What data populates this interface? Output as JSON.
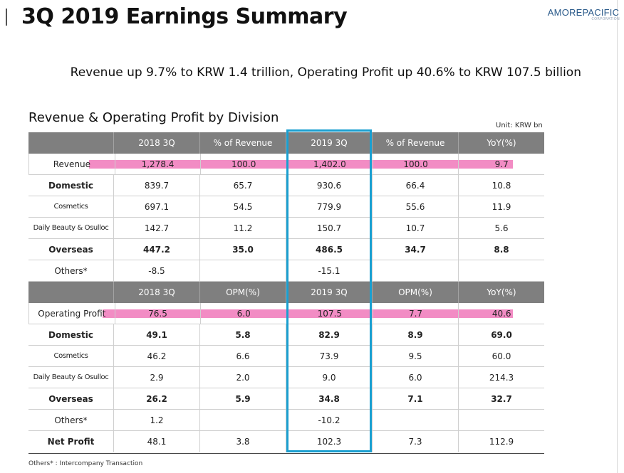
{
  "page": {
    "title": "3Q 2019 Earnings Summary",
    "logo_brand": "AMOREPACIFIC",
    "logo_sub": "CORPORATION",
    "headline": "Revenue up 9.7% to KRW 1.4 trillion, Operating Profit up 40.6% to KRW 107.5 billion",
    "section_title": "Revenue & Operating Profit by Division",
    "unit": "Unit: KRW bn",
    "footnote": "Others* : Intercompany Transaction"
  },
  "revenue_table": {
    "headers": [
      "",
      "2018 3Q",
      "% of Revenue",
      "2019 3Q",
      "% of Revenue",
      "YoY(%)"
    ],
    "rows": [
      [
        "Revenue",
        "1,278.4",
        "100.0",
        "1,402.0",
        "100.0",
        "9.7"
      ],
      [
        "Domestic",
        "839.7",
        "65.7",
        "930.6",
        "66.4",
        "10.8"
      ],
      [
        "Cosmetics",
        "697.1",
        "54.5",
        "779.9",
        "55.6",
        "11.9"
      ],
      [
        "Daily Beauty & Osulloc",
        "142.7",
        "11.2",
        "150.7",
        "10.7",
        "5.6"
      ],
      [
        "Overseas",
        "447.2",
        "35.0",
        "486.5",
        "34.7",
        "8.8"
      ],
      [
        "Others*",
        "-8.5",
        "",
        "-15.1",
        "",
        ""
      ]
    ]
  },
  "profit_table": {
    "headers": [
      "",
      "2018 3Q",
      "OPM(%)",
      "2019 3Q",
      "OPM(%)",
      "YoY(%)"
    ],
    "rows": [
      [
        "Operating Profit",
        "76.5",
        "6.0",
        "107.5",
        "7.7",
        "40.6"
      ],
      [
        "Domestic",
        "49.1",
        "5.8",
        "82.9",
        "8.9",
        "69.0"
      ],
      [
        "Cosmetics",
        "46.2",
        "6.6",
        "73.9",
        "9.5",
        "60.0"
      ],
      [
        "Daily Beauty & Osulloc",
        "2.9",
        "2.0",
        "9.0",
        "6.0",
        "214.3"
      ],
      [
        "Overseas",
        "26.2",
        "5.9",
        "34.8",
        "7.1",
        "32.7"
      ],
      [
        "Others*",
        "1.2",
        "",
        "-10.2",
        "",
        ""
      ],
      [
        "Net Profit",
        "48.1",
        "3.8",
        "102.3",
        "7.3",
        "112.9"
      ]
    ]
  },
  "colors": {
    "header_bg": "#7f7f7f",
    "highlight": "#f28cc4",
    "focus_box": "#1a9fd0",
    "brand": "#2a5a8a"
  }
}
